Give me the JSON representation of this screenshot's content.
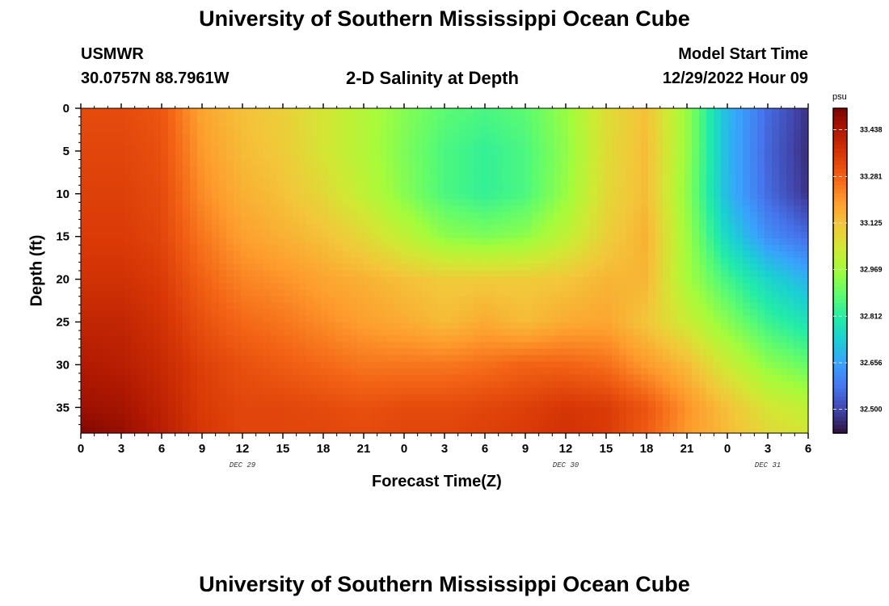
{
  "page": {
    "title": "University of Southern Mississippi Ocean Cube",
    "footer_title": "University of Southern Mississippi Ocean Cube",
    "station": "USMWR",
    "coordinates": "30.0757N  88.7961W",
    "subtitle": "2-D Salinity at Depth",
    "model_start_label": "Model Start Time",
    "model_start_value": "12/29/2022 Hour 09"
  },
  "chart_data": {
    "type": "heatmap",
    "title": "2-D Salinity at Depth",
    "xlabel": "Forecast Time(Z)",
    "ylabel": "Depth (ft)",
    "colorbar_units": "psu",
    "xlim": [
      0,
      54
    ],
    "ylim": [
      38,
      0
    ],
    "x_ticks": [
      0,
      3,
      6,
      9,
      12,
      15,
      18,
      21,
      24,
      27,
      30,
      33,
      36,
      39,
      42,
      45,
      48,
      51,
      54
    ],
    "x_tick_labels": [
      "0",
      "3",
      "6",
      "9",
      "12",
      "15",
      "18",
      "21",
      "0",
      "3",
      "6",
      "9",
      "12",
      "15",
      "18",
      "21",
      "0",
      "3",
      "6"
    ],
    "day_labels": [
      {
        "x": 12,
        "label": "DEC 29"
      },
      {
        "x": 36,
        "label": "DEC 30"
      },
      {
        "x": 51,
        "label": "DEC 31"
      }
    ],
    "y_ticks": [
      0,
      5,
      10,
      15,
      20,
      25,
      30,
      35
    ],
    "y_tick_labels": [
      "0",
      "5",
      "10",
      "15",
      "20",
      "25",
      "30",
      "35"
    ],
    "color_range": [
      32.42,
      33.51
    ],
    "colorbar_ticks": [
      33.438,
      33.281,
      33.125,
      32.969,
      32.812,
      32.656,
      32.5
    ],
    "colorbar_tick_labels": [
      "33.438",
      "33.281",
      "33.125",
      "32.969",
      "32.812",
      "32.656",
      "32.500"
    ],
    "colormap": [
      "#30123b",
      "#4145ab",
      "#4675ed",
      "#39a2fc",
      "#1bcfd4",
      "#24eca6",
      "#61fc6c",
      "#a4fc3b",
      "#d1e834",
      "#f3c63a",
      "#fe9b2d",
      "#f36315",
      "#d93806",
      "#b11901",
      "#7a0402"
    ],
    "x_hours": [
      0,
      3,
      6,
      9,
      12,
      15,
      18,
      21,
      24,
      27,
      30,
      33,
      36,
      39,
      42,
      45,
      48,
      51,
      54
    ],
    "depths_ft": [
      0,
      5,
      10,
      15,
      20,
      25,
      30,
      35,
      38
    ],
    "values": [
      [
        33.32,
        33.32,
        33.3,
        33.18,
        33.13,
        33.1,
        33.05,
        32.99,
        32.93,
        32.88,
        32.86,
        32.88,
        32.95,
        33.07,
        33.13,
        32.95,
        32.69,
        32.56,
        32.47
      ],
      [
        33.33,
        33.33,
        33.31,
        33.2,
        33.14,
        33.11,
        33.05,
        32.99,
        32.92,
        32.86,
        32.83,
        32.86,
        32.94,
        33.07,
        33.14,
        32.95,
        32.69,
        32.55,
        32.46
      ],
      [
        33.34,
        33.34,
        33.32,
        33.22,
        33.16,
        33.13,
        33.08,
        33.01,
        32.93,
        32.86,
        32.83,
        32.86,
        32.95,
        33.08,
        33.14,
        32.94,
        32.69,
        32.56,
        32.47
      ],
      [
        33.35,
        33.35,
        33.33,
        33.25,
        33.19,
        33.16,
        33.13,
        33.08,
        33.01,
        32.94,
        32.92,
        32.94,
        33.01,
        33.1,
        33.16,
        32.96,
        32.75,
        32.62,
        32.56
      ],
      [
        33.37,
        33.37,
        33.35,
        33.28,
        33.23,
        33.21,
        33.18,
        33.16,
        33.13,
        33.11,
        33.11,
        33.11,
        33.12,
        33.15,
        33.15,
        32.97,
        32.85,
        32.75,
        32.68
      ],
      [
        33.4,
        33.4,
        33.37,
        33.31,
        33.27,
        33.25,
        33.22,
        33.19,
        33.17,
        33.14,
        33.17,
        33.14,
        33.17,
        33.18,
        33.12,
        33.03,
        32.93,
        32.84,
        32.78
      ],
      [
        33.43,
        33.42,
        33.39,
        33.34,
        33.31,
        33.29,
        33.27,
        33.25,
        33.25,
        33.25,
        33.26,
        33.28,
        33.28,
        33.26,
        33.2,
        33.14,
        33.03,
        32.94,
        32.89
      ],
      [
        33.46,
        33.45,
        33.41,
        33.35,
        33.33,
        33.33,
        33.32,
        33.31,
        33.32,
        33.32,
        33.33,
        33.34,
        33.36,
        33.35,
        33.3,
        33.21,
        33.13,
        33.05,
        33.01
      ],
      [
        33.5,
        33.47,
        33.42,
        33.36,
        33.33,
        33.33,
        33.33,
        33.32,
        33.33,
        33.33,
        33.34,
        33.35,
        33.37,
        33.35,
        33.29,
        33.2,
        33.14,
        33.08,
        33.05
      ]
    ]
  }
}
